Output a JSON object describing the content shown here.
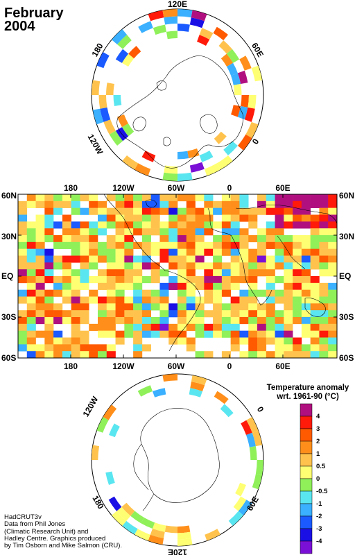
{
  "title": {
    "line1": "February",
    "line2": "2004"
  },
  "north_pole_labels": {
    "top": "120E",
    "right": "60E",
    "left": "180",
    "bottom_right": "0",
    "bottom_left": "120W"
  },
  "equirect": {
    "top_lon": [
      "180",
      "120W",
      "60W",
      "0",
      "60E"
    ],
    "bottom_lon": [
      "180",
      "120W",
      "60W",
      "0",
      "60E"
    ],
    "lat_left": [
      "60N",
      "30N",
      "EQ",
      "30S",
      "60S"
    ],
    "lat_right": [
      "60N",
      "30N",
      "EQ",
      "30S",
      "60S"
    ]
  },
  "south_pole_labels": {
    "left": "120W",
    "right": "0",
    "bottom_left": "180",
    "bottom_right": "60E",
    "bottom": "120E"
  },
  "legend": {
    "title_line1": "Temperature anomaly",
    "title_line2": "wrt. 1961-90 (°C)",
    "bins": [
      {
        "label": "4",
        "color": "#b0107f"
      },
      {
        "label": "3",
        "color": "#ff1a0a"
      },
      {
        "label": "2",
        "color": "#ff5a00"
      },
      {
        "label": "1",
        "color": "#ff8f1a"
      },
      {
        "label": "0.5",
        "color": "#ffc34d"
      },
      {
        "label": "0",
        "color": "#ffff73"
      },
      {
        "label": "-0.5",
        "color": "#8ff05a"
      },
      {
        "label": "-1",
        "color": "#5ae6f0"
      },
      {
        "label": "-2",
        "color": "#3ab0ff"
      },
      {
        "label": "-3",
        "color": "#1a5aff"
      },
      {
        "label": "-4",
        "color": "#1a10e6"
      },
      {
        "label": "",
        "color": "#7a10d6"
      }
    ]
  },
  "credits": [
    "HadCRUT3v",
    "Data from Phil Jones",
    "(Climatic Research Unit) and",
    "Hadley Centre.  Graphics produced",
    "by Tim Osborn and Mike Salmon (CRU)."
  ]
}
